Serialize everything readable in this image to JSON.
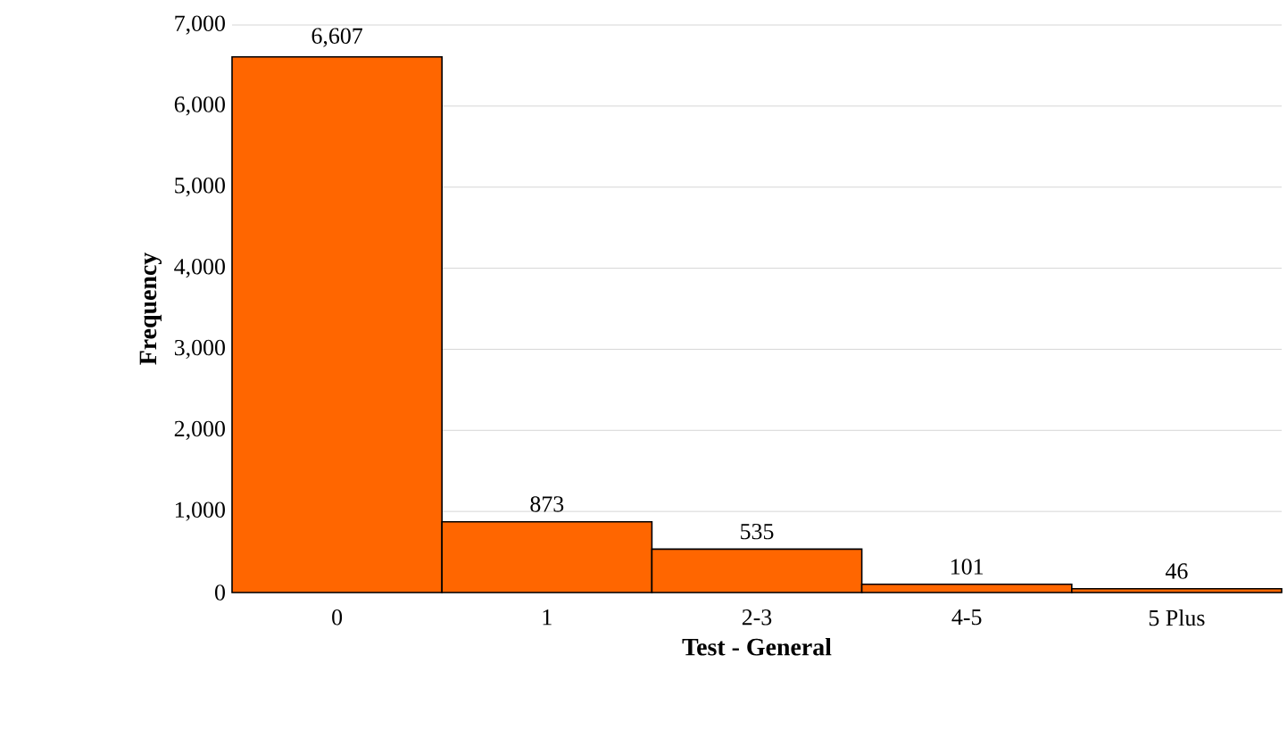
{
  "chart_data": {
    "type": "bar",
    "xlabel": "Test - General",
    "ylabel": "Frequency",
    "categories": [
      "0",
      "1",
      "2-3",
      "4-5",
      "5 Plus"
    ],
    "values": [
      6607,
      873,
      535,
      101,
      46
    ],
    "value_labels": [
      "6,607",
      "873",
      "535",
      "101",
      "46"
    ],
    "color": "#ff6600",
    "ylim": [
      0,
      7000
    ],
    "yticks": [
      0,
      {
        "value": 1000,
        "label": "1,000"
      },
      {
        "value": 2000,
        "label": "2,000"
      },
      {
        "value": 3000,
        "label": "3,000"
      },
      {
        "value": 4000,
        "label": "4,000"
      },
      {
        "value": 5000,
        "label": "5,000"
      },
      {
        "value": 6000,
        "label": "6,000"
      },
      {
        "value": 7000,
        "label": "7,000"
      }
    ],
    "grid": "y"
  }
}
